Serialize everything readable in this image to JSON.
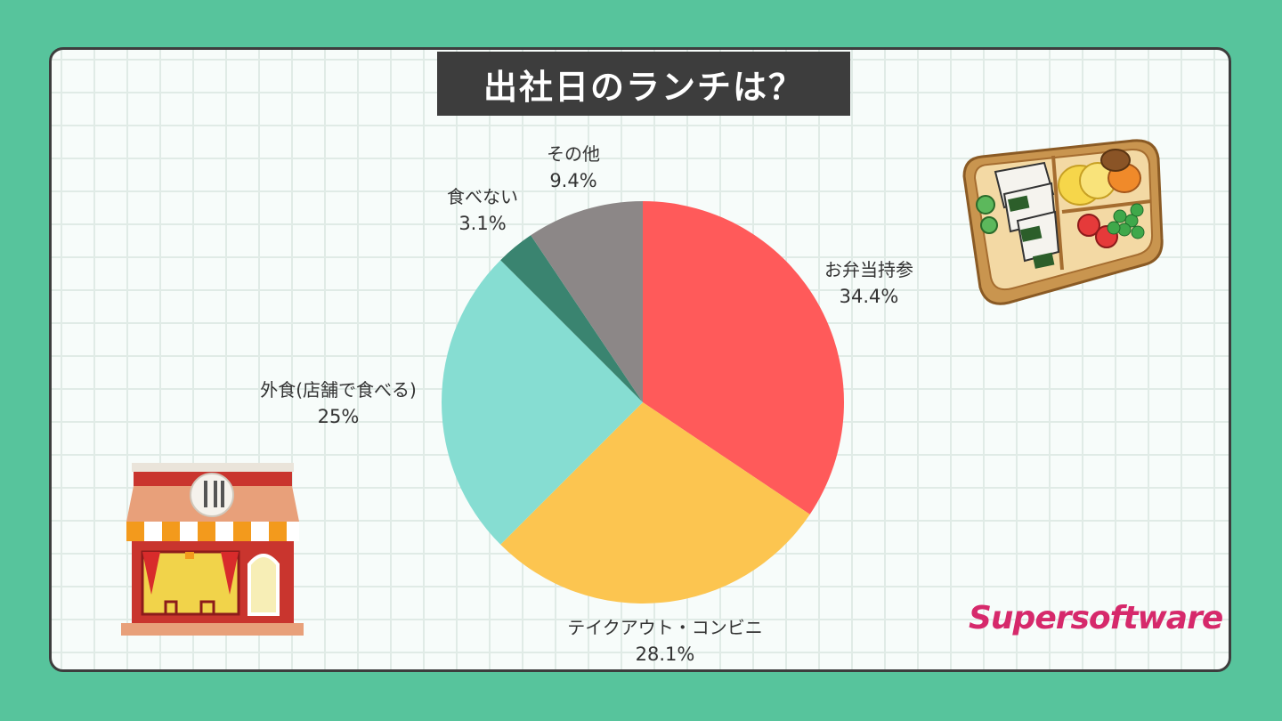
{
  "title": "出社日のランチは？",
  "logo_text": "Supersoftware",
  "icons": [
    "bento-box-icon",
    "restaurant-icon"
  ],
  "chart_data": {
    "type": "pie",
    "title": "出社日のランチは？",
    "start_angle_deg": 0,
    "direction": "clockwise",
    "legend": "none (direct labels)",
    "slices": [
      {
        "label": "お弁当持参",
        "value": 34.4,
        "value_label": "34.4%",
        "color": "#ff5a5a"
      },
      {
        "label": "テイクアウト・コンビニ",
        "value": 28.1,
        "value_label": "28.1%",
        "color": "#fcc550"
      },
      {
        "label": "外食(店舗で食べる)",
        "value": 25,
        "value_label": "25%",
        "color": "#86ddd2"
      },
      {
        "label": "食べない",
        "value": 3.1,
        "value_label": "3.1%",
        "color": "#3a8470"
      },
      {
        "label": "その他",
        "value": 9.4,
        "value_label": "9.4%",
        "color": "#8c8787"
      }
    ]
  }
}
